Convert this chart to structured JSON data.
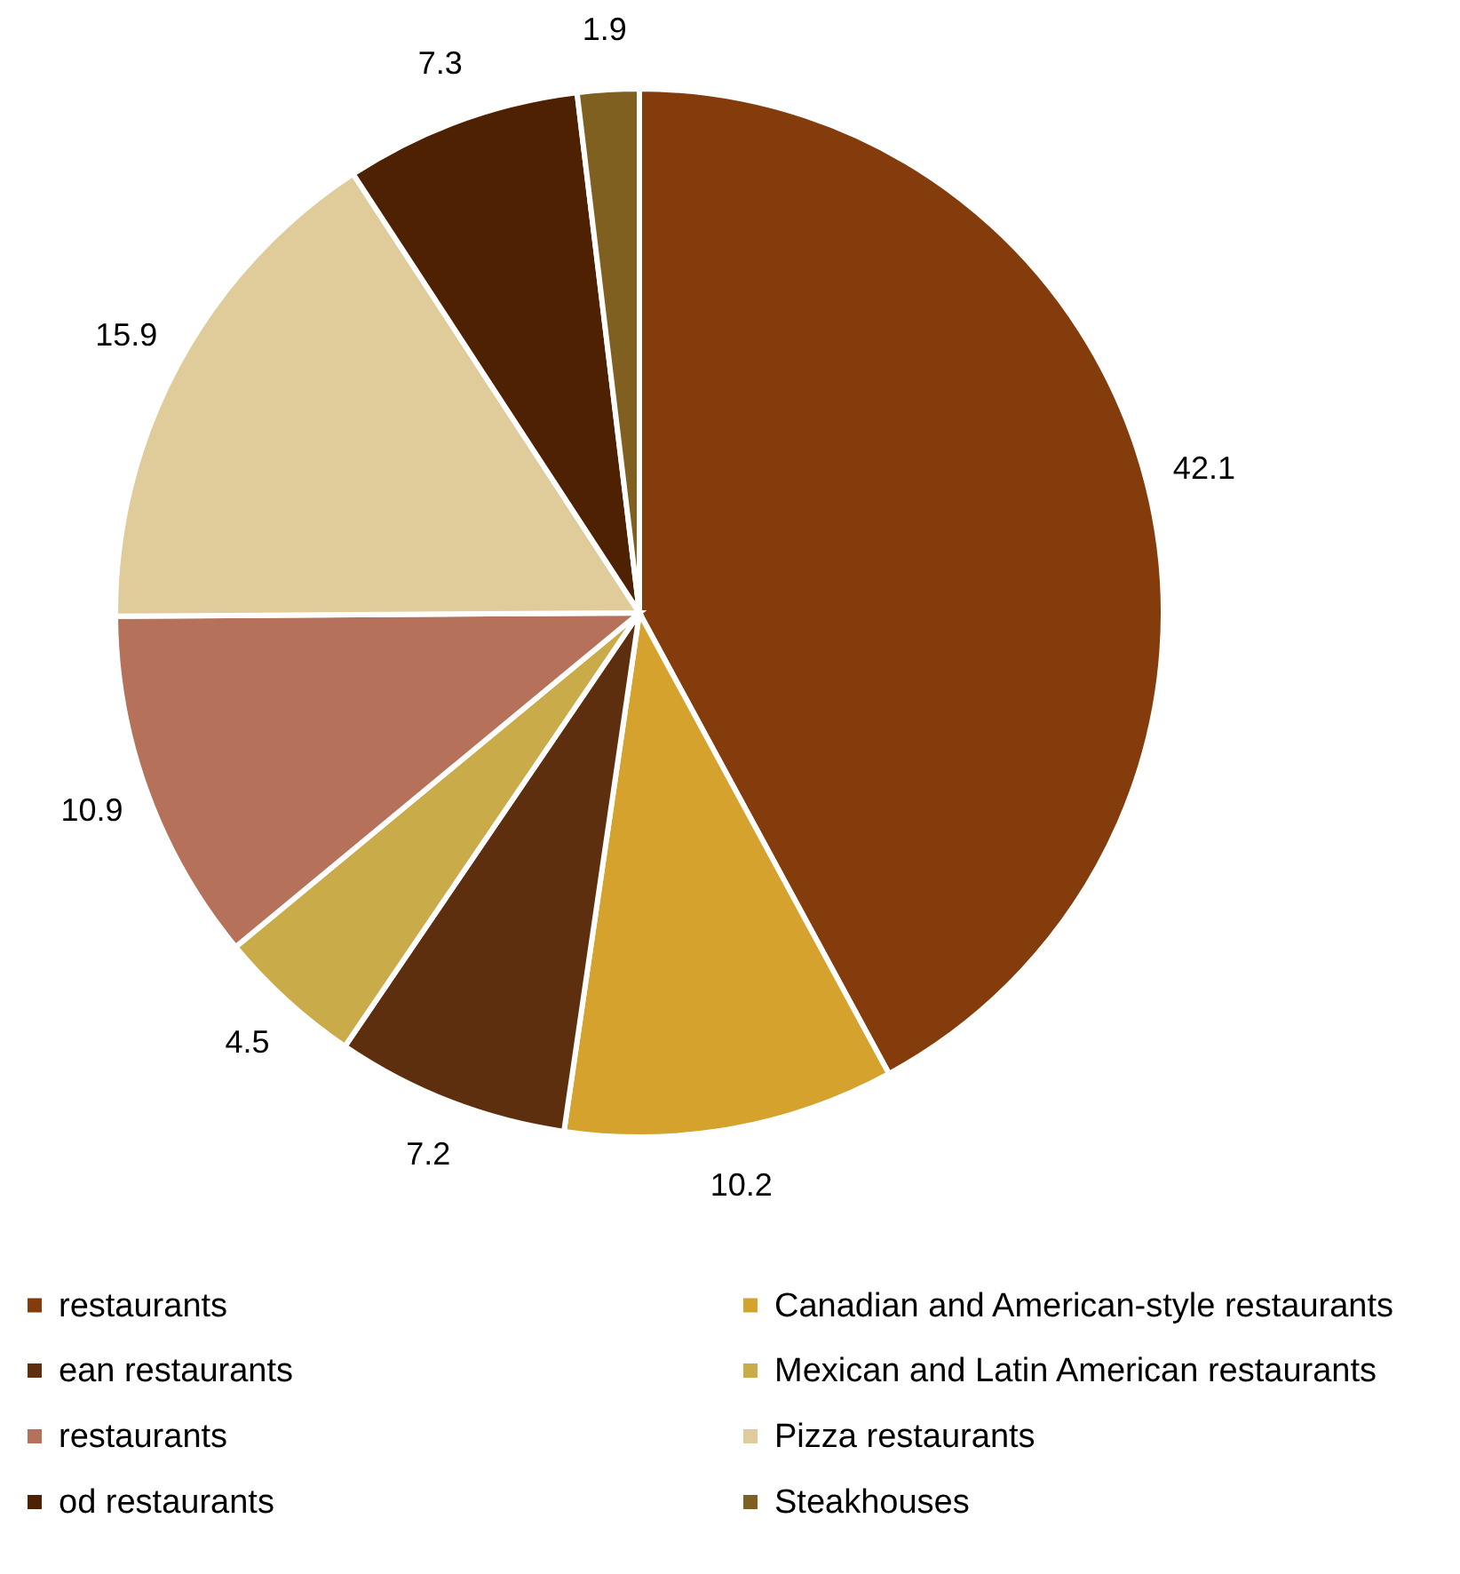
{
  "chart_data": {
    "type": "pie",
    "categories": [
      "restaurants",
      "Canadian and American-style restaurants",
      "ean restaurants",
      "Mexican and Latin American restaurants",
      "restaurants",
      "Pizza restaurants",
      "od restaurants",
      "Steakhouses"
    ],
    "values": [
      42.1,
      10.2,
      7.2,
      4.5,
      10.9,
      15.9,
      7.3,
      1.9
    ],
    "colors": [
      "#843c0c",
      "#d6a22e",
      "#5e2f0e",
      "#c9ab4a",
      "#b5715a",
      "#dfcc9a",
      "#4e2103",
      "#7f6020"
    ],
    "data_labels": true,
    "legend": "bottom"
  }
}
